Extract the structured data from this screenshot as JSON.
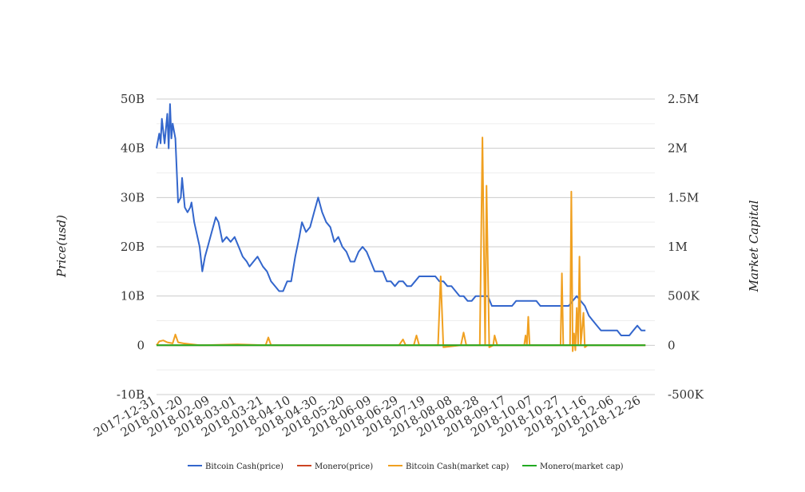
{
  "chart_data": {
    "type": "line",
    "title": "",
    "y_left_label": "Price(usd)",
    "y_right_label": "Market Capital",
    "y_left_ticks": [
      "50B",
      "40B",
      "30B",
      "20B",
      "10B",
      "0",
      "-10B"
    ],
    "y_left_tick_values": [
      50,
      40,
      30,
      20,
      10,
      0,
      -10
    ],
    "y_left_unit": "B",
    "y_right_ticks": [
      "2.5M",
      "2M",
      "1.5M",
      "1M",
      "500K",
      "0",
      "-500K"
    ],
    "y_right_tick_values": [
      2500,
      2000,
      1500,
      1000,
      500,
      0,
      -500
    ],
    "y_right_unit": "K",
    "y_left_range": [
      -10,
      50
    ],
    "y_right_range": [
      -500,
      2500
    ],
    "x_range": [
      "2017-12-31",
      "2019-01-05"
    ],
    "x_ticks": [
      "2017-12-31",
      "2018-01-20",
      "2018-02-09",
      "2018-03-01",
      "2018-03-21",
      "2018-04-10",
      "2018-04-30",
      "2018-05-20",
      "2018-06-09",
      "2018-06-29",
      "2018-07-19",
      "2018-08-08",
      "2018-08-28",
      "2018-09-17",
      "2018-10-07",
      "2018-10-27",
      "2018-11-16",
      "2018-12-06",
      "2018-12-26"
    ],
    "grid": true,
    "legend_position": "bottom",
    "series": [
      {
        "name": "Bitcoin Cash(price)",
        "axis": "left",
        "color": "#3366cc",
        "points": [
          [
            "2017-12-31",
            40
          ],
          [
            "2018-01-02",
            43
          ],
          [
            "2018-01-03",
            41
          ],
          [
            "2018-01-04",
            46
          ],
          [
            "2018-01-06",
            41
          ],
          [
            "2018-01-08",
            47
          ],
          [
            "2018-01-09",
            40
          ],
          [
            "2018-01-10",
            49
          ],
          [
            "2018-01-11",
            42
          ],
          [
            "2018-01-12",
            45
          ],
          [
            "2018-01-14",
            42
          ],
          [
            "2018-01-16",
            29
          ],
          [
            "2018-01-18",
            30
          ],
          [
            "2018-01-19",
            34
          ],
          [
            "2018-01-21",
            28
          ],
          [
            "2018-01-23",
            27
          ],
          [
            "2018-01-25",
            28
          ],
          [
            "2018-01-26",
            29
          ],
          [
            "2018-01-28",
            25
          ],
          [
            "2018-02-01",
            20
          ],
          [
            "2018-02-03",
            15
          ],
          [
            "2018-02-05",
            18
          ],
          [
            "2018-02-07",
            20
          ],
          [
            "2018-02-10",
            23
          ],
          [
            "2018-02-13",
            26
          ],
          [
            "2018-02-15",
            25
          ],
          [
            "2018-02-18",
            21
          ],
          [
            "2018-02-21",
            22
          ],
          [
            "2018-02-24",
            21
          ],
          [
            "2018-02-27",
            22
          ],
          [
            "2018-03-02",
            20
          ],
          [
            "2018-03-05",
            18
          ],
          [
            "2018-03-08",
            17
          ],
          [
            "2018-03-10",
            16
          ],
          [
            "2018-03-13",
            17
          ],
          [
            "2018-03-16",
            18
          ],
          [
            "2018-03-20",
            16
          ],
          [
            "2018-03-23",
            15
          ],
          [
            "2018-03-26",
            13
          ],
          [
            "2018-03-29",
            12
          ],
          [
            "2018-04-01",
            11
          ],
          [
            "2018-04-04",
            11
          ],
          [
            "2018-04-07",
            13
          ],
          [
            "2018-04-10",
            13
          ],
          [
            "2018-04-13",
            18
          ],
          [
            "2018-04-16",
            22
          ],
          [
            "2018-04-18",
            25
          ],
          [
            "2018-04-21",
            23
          ],
          [
            "2018-04-24",
            24
          ],
          [
            "2018-04-27",
            27
          ],
          [
            "2018-04-30",
            30
          ],
          [
            "2018-05-03",
            27
          ],
          [
            "2018-05-06",
            25
          ],
          [
            "2018-05-09",
            24
          ],
          [
            "2018-05-12",
            21
          ],
          [
            "2018-05-15",
            22
          ],
          [
            "2018-05-18",
            20
          ],
          [
            "2018-05-21",
            19
          ],
          [
            "2018-05-24",
            17
          ],
          [
            "2018-05-27",
            17
          ],
          [
            "2018-05-30",
            19
          ],
          [
            "2018-06-02",
            20
          ],
          [
            "2018-06-05",
            19
          ],
          [
            "2018-06-08",
            17
          ],
          [
            "2018-06-11",
            15
          ],
          [
            "2018-06-14",
            15
          ],
          [
            "2018-06-17",
            15
          ],
          [
            "2018-06-20",
            13
          ],
          [
            "2018-06-23",
            13
          ],
          [
            "2018-06-26",
            12
          ],
          [
            "2018-06-29",
            13
          ],
          [
            "2018-07-02",
            13
          ],
          [
            "2018-07-05",
            12
          ],
          [
            "2018-07-08",
            12
          ],
          [
            "2018-07-11",
            13
          ],
          [
            "2018-07-14",
            14
          ],
          [
            "2018-07-17",
            14
          ],
          [
            "2018-07-20",
            14
          ],
          [
            "2018-07-23",
            14
          ],
          [
            "2018-07-26",
            14
          ],
          [
            "2018-07-29",
            13
          ],
          [
            "2018-08-01",
            13
          ],
          [
            "2018-08-04",
            12
          ],
          [
            "2018-08-07",
            12
          ],
          [
            "2018-08-10",
            11
          ],
          [
            "2018-08-13",
            10
          ],
          [
            "2018-08-16",
            10
          ],
          [
            "2018-08-19",
            9
          ],
          [
            "2018-08-22",
            9
          ],
          [
            "2018-08-25",
            10
          ],
          [
            "2018-08-28",
            10
          ],
          [
            "2018-08-31",
            10
          ],
          [
            "2018-09-03",
            10
          ],
          [
            "2018-09-06",
            8
          ],
          [
            "2018-09-09",
            8
          ],
          [
            "2018-09-12",
            8
          ],
          [
            "2018-09-15",
            8
          ],
          [
            "2018-09-18",
            8
          ],
          [
            "2018-09-21",
            8
          ],
          [
            "2018-09-24",
            9
          ],
          [
            "2018-09-27",
            9
          ],
          [
            "2018-09-30",
            9
          ],
          [
            "2018-10-03",
            9
          ],
          [
            "2018-10-06",
            9
          ],
          [
            "2018-10-09",
            9
          ],
          [
            "2018-10-12",
            8
          ],
          [
            "2018-10-15",
            8
          ],
          [
            "2018-10-18",
            8
          ],
          [
            "2018-10-21",
            8
          ],
          [
            "2018-10-24",
            8
          ],
          [
            "2018-10-27",
            8
          ],
          [
            "2018-10-30",
            8
          ],
          [
            "2018-11-02",
            8
          ],
          [
            "2018-11-05",
            9
          ],
          [
            "2018-11-08",
            10
          ],
          [
            "2018-11-11",
            9
          ],
          [
            "2018-11-14",
            8
          ],
          [
            "2018-11-17",
            6
          ],
          [
            "2018-11-20",
            5
          ],
          [
            "2018-11-23",
            4
          ],
          [
            "2018-11-26",
            3
          ],
          [
            "2018-11-29",
            3
          ],
          [
            "2018-12-02",
            3
          ],
          [
            "2018-12-05",
            3
          ],
          [
            "2018-12-08",
            3
          ],
          [
            "2018-12-11",
            2
          ],
          [
            "2018-12-14",
            2
          ],
          [
            "2018-12-17",
            2
          ],
          [
            "2018-12-20",
            3
          ],
          [
            "2018-12-23",
            4
          ],
          [
            "2018-12-26",
            3
          ],
          [
            "2018-12-29",
            3
          ]
        ]
      },
      {
        "name": "Monero(price)",
        "axis": "left",
        "color": "#cc4422",
        "points": [
          [
            "2017-12-31",
            0
          ],
          [
            "2018-12-29",
            0
          ]
        ]
      },
      {
        "name": "Bitcoin Cash(market cap)",
        "axis": "right",
        "color": "#f0a020",
        "points": [
          [
            "2017-12-31",
            0
          ],
          [
            "2018-01-02",
            40
          ],
          [
            "2018-01-05",
            50
          ],
          [
            "2018-01-08",
            30
          ],
          [
            "2018-01-12",
            20
          ],
          [
            "2018-01-14",
            110
          ],
          [
            "2018-01-16",
            30
          ],
          [
            "2018-01-20",
            20
          ],
          [
            "2018-02-01",
            0
          ],
          [
            "2018-03-01",
            10
          ],
          [
            "2018-03-22",
            0
          ],
          [
            "2018-03-24",
            80
          ],
          [
            "2018-03-26",
            0
          ],
          [
            "2018-06-29",
            0
          ],
          [
            "2018-07-02",
            60
          ],
          [
            "2018-07-04",
            0
          ],
          [
            "2018-07-10",
            0
          ],
          [
            "2018-07-12",
            100
          ],
          [
            "2018-07-14",
            0
          ],
          [
            "2018-07-28",
            0
          ],
          [
            "2018-07-30",
            700
          ],
          [
            "2018-08-01",
            -20
          ],
          [
            "2018-08-14",
            0
          ],
          [
            "2018-08-16",
            130
          ],
          [
            "2018-08-18",
            0
          ],
          [
            "2018-08-28",
            0
          ],
          [
            "2018-08-30",
            2110
          ],
          [
            "2018-09-01",
            0
          ],
          [
            "2018-09-02",
            1620
          ],
          [
            "2018-09-04",
            -20
          ],
          [
            "2018-09-07",
            0
          ],
          [
            "2018-09-08",
            100
          ],
          [
            "2018-09-10",
            0
          ],
          [
            "2018-09-30",
            0
          ],
          [
            "2018-10-01",
            100
          ],
          [
            "2018-10-02",
            0
          ],
          [
            "2018-10-03",
            290
          ],
          [
            "2018-10-04",
            0
          ],
          [
            "2018-10-27",
            0
          ],
          [
            "2018-10-28",
            730
          ],
          [
            "2018-10-29",
            0
          ],
          [
            "2018-11-03",
            0
          ],
          [
            "2018-11-04",
            1560
          ],
          [
            "2018-11-05",
            -60
          ],
          [
            "2018-11-06",
            120
          ],
          [
            "2018-11-07",
            -50
          ],
          [
            "2018-11-08",
            380
          ],
          [
            "2018-11-09",
            0
          ],
          [
            "2018-11-10",
            900
          ],
          [
            "2018-11-11",
            0
          ],
          [
            "2018-11-13",
            330
          ],
          [
            "2018-11-14",
            -20
          ],
          [
            "2018-11-16",
            0
          ],
          [
            "2018-12-29",
            0
          ]
        ]
      },
      {
        "name": "Monero(market cap)",
        "axis": "right",
        "color": "#22aa22",
        "points": [
          [
            "2017-12-31",
            0
          ],
          [
            "2018-12-29",
            0
          ]
        ]
      }
    ]
  }
}
